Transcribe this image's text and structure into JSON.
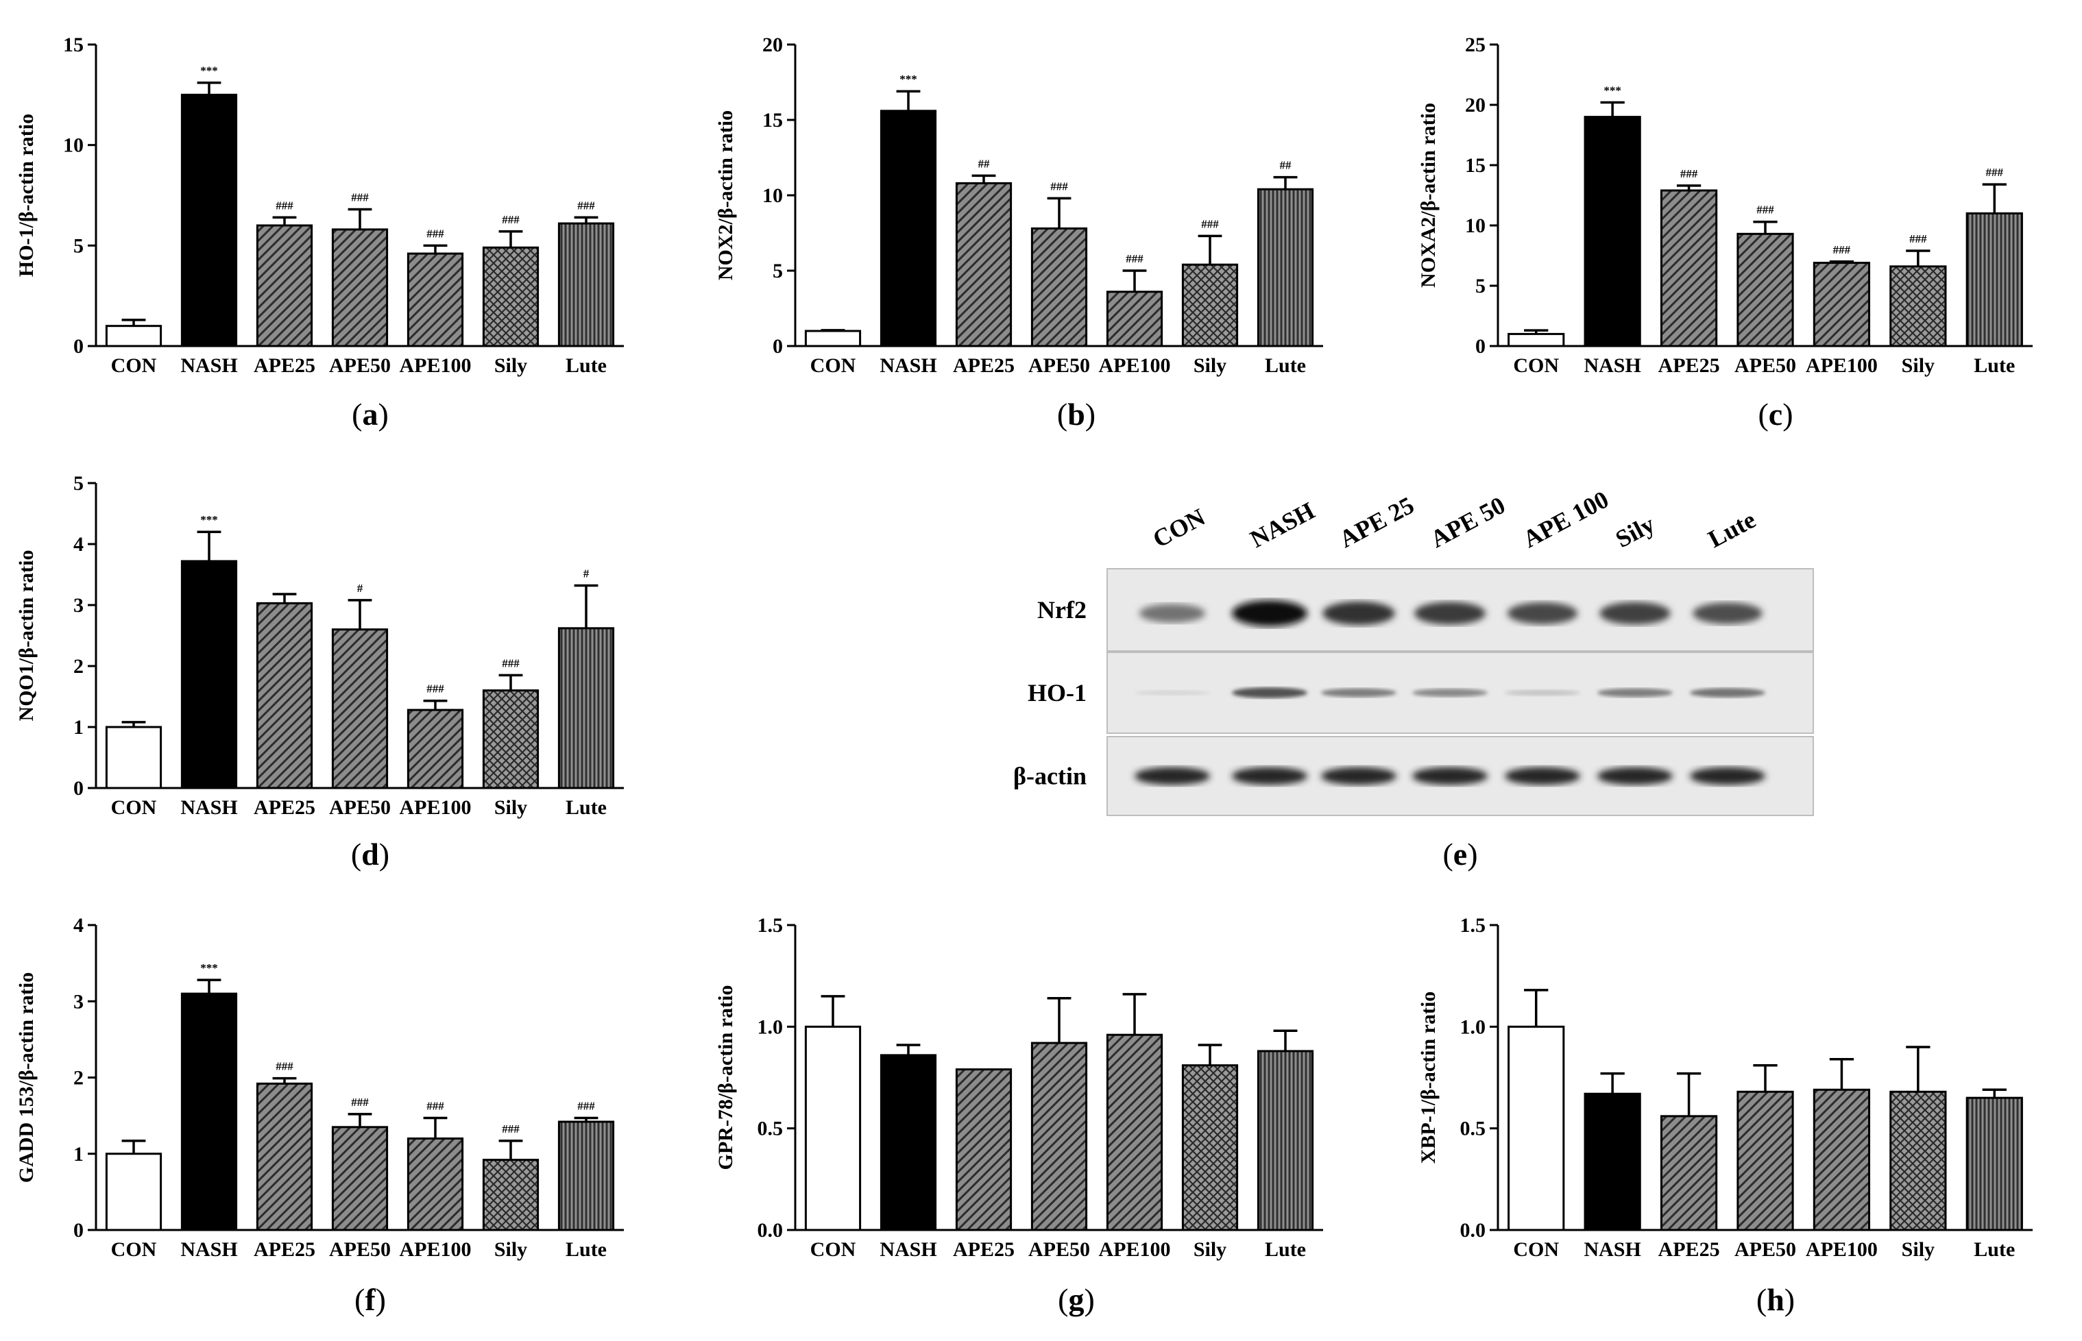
{
  "colors": {
    "con": "#ffffff",
    "nash": "#000000",
    "hatch": "#8a8a8a",
    "sily_cross": "#7a7a7a",
    "lute_vert": "#6e6e6e"
  },
  "chart_data": [
    {
      "panel": "a",
      "type": "bar",
      "categories": [
        "CON",
        "NASH",
        "APE25",
        "APE50",
        "APE100",
        "Sily",
        "Lute"
      ],
      "values": [
        1.0,
        12.5,
        6.0,
        5.8,
        4.6,
        4.9,
        6.1
      ],
      "errors": [
        0.3,
        0.6,
        0.4,
        1.0,
        0.4,
        0.8,
        0.3
      ],
      "significance": [
        "",
        "***",
        "###",
        "###",
        "###",
        "###",
        "###"
      ],
      "ylabel": "HO-1/β-actin ratio",
      "ylim": [
        0,
        15
      ],
      "yticks": [
        "0",
        "5",
        "10",
        "15"
      ],
      "caption": "a"
    },
    {
      "panel": "b",
      "type": "bar",
      "categories": [
        "CON",
        "NASH",
        "APE25",
        "APE50",
        "APE100",
        "Sily",
        "Lute"
      ],
      "values": [
        1.0,
        15.6,
        10.8,
        7.8,
        3.6,
        5.4,
        10.4
      ],
      "errors": [
        0.05,
        1.3,
        0.5,
        2.0,
        1.4,
        1.9,
        0.8
      ],
      "significance": [
        "",
        "***",
        "##",
        "###",
        "###",
        "###",
        "##"
      ],
      "ylabel": "NOX2/β-actin ratio",
      "ylim": [
        0,
        20
      ],
      "yticks": [
        "0",
        "5",
        "10",
        "15",
        "20"
      ],
      "caption": "b"
    },
    {
      "panel": "c",
      "type": "bar",
      "categories": [
        "CON",
        "NASH",
        "APE25",
        "APE50",
        "APE100",
        "Sily",
        "Lute"
      ],
      "values": [
        1.0,
        19.0,
        12.9,
        9.3,
        6.9,
        6.6,
        11.0
      ],
      "errors": [
        0.3,
        1.2,
        0.4,
        1.0,
        0.1,
        1.3,
        2.4
      ],
      "significance": [
        "",
        "***",
        "###",
        "###",
        "###",
        "###",
        "###"
      ],
      "ylabel": "NOXA2/β-actin ratio",
      "ylim": [
        0,
        25
      ],
      "yticks": [
        "0",
        "5",
        "10",
        "15",
        "20",
        "25"
      ],
      "caption": "c"
    },
    {
      "panel": "d",
      "type": "bar",
      "categories": [
        "CON",
        "NASH",
        "APE25",
        "APE50",
        "APE100",
        "Sily",
        "Lute"
      ],
      "values": [
        1.0,
        3.72,
        3.03,
        2.6,
        1.28,
        1.6,
        2.62
      ],
      "errors": [
        0.08,
        0.48,
        0.15,
        0.48,
        0.15,
        0.25,
        0.7
      ],
      "significance": [
        "",
        "***",
        "",
        "#",
        "###",
        "###",
        "#"
      ],
      "ylabel": "NQO1/β-actin ratio",
      "ylim": [
        0,
        5
      ],
      "yticks": [
        "0",
        "1",
        "2",
        "3",
        "4",
        "5"
      ],
      "caption": "d"
    },
    {
      "panel": "f",
      "type": "bar",
      "categories": [
        "CON",
        "NASH",
        "APE25",
        "APE50",
        "APE100",
        "Sily",
        "Lute"
      ],
      "values": [
        1.0,
        3.1,
        1.92,
        1.35,
        1.2,
        0.92,
        1.42
      ],
      "errors": [
        0.17,
        0.18,
        0.07,
        0.17,
        0.27,
        0.25,
        0.05
      ],
      "significance": [
        "",
        "***",
        "###",
        "###",
        "###",
        "###",
        "###"
      ],
      "ylabel": "GADD 153/β-actin ratio",
      "ylim": [
        0,
        4
      ],
      "yticks": [
        "0",
        "1",
        "2",
        "3",
        "4"
      ],
      "caption": "f"
    },
    {
      "panel": "g",
      "type": "bar",
      "categories": [
        "CON",
        "NASH",
        "APE25",
        "APE50",
        "APE100",
        "Sily",
        "Lute"
      ],
      "values": [
        1.0,
        0.86,
        0.79,
        0.92,
        0.96,
        0.81,
        0.88
      ],
      "errors": [
        0.15,
        0.05,
        0.0,
        0.22,
        0.2,
        0.1,
        0.1
      ],
      "significance": [
        "",
        "",
        "",
        "",
        "",
        "",
        ""
      ],
      "ylabel": "GPR-78/β-actin ratio",
      "ylim": [
        0,
        1.5
      ],
      "yticks": [
        "0.0",
        "0.5",
        "1.0",
        "1.5"
      ],
      "caption": "g"
    },
    {
      "panel": "h",
      "type": "bar",
      "categories": [
        "CON",
        "NASH",
        "APE25",
        "APE50",
        "APE100",
        "Sily",
        "Lute"
      ],
      "values": [
        1.0,
        0.67,
        0.56,
        0.68,
        0.69,
        0.68,
        0.65
      ],
      "errors": [
        0.18,
        0.1,
        0.21,
        0.13,
        0.15,
        0.22,
        0.04
      ],
      "significance": [
        "",
        "",
        "",
        "",
        "",
        "",
        ""
      ],
      "ylabel": "XBP-1/β-actin ratio",
      "ylim": [
        0,
        1.5
      ],
      "yticks": [
        "0.0",
        "0.5",
        "1.0",
        "1.5"
      ],
      "caption": "h"
    }
  ],
  "blot": {
    "caption": "e",
    "lanes": [
      "CON",
      "NASH",
      "APE 25",
      "APE 50",
      "APE 100",
      "Sily",
      "Lute"
    ],
    "rows": [
      "Nrf2",
      "HO-1",
      "β-actin"
    ],
    "band_intensity": [
      [
        0.55,
        1.0,
        0.85,
        0.8,
        0.75,
        0.78,
        0.72
      ],
      [
        0.1,
        0.7,
        0.5,
        0.45,
        0.18,
        0.5,
        0.55
      ],
      [
        0.9,
        0.9,
        0.9,
        0.9,
        0.9,
        0.9,
        0.9
      ]
    ]
  }
}
